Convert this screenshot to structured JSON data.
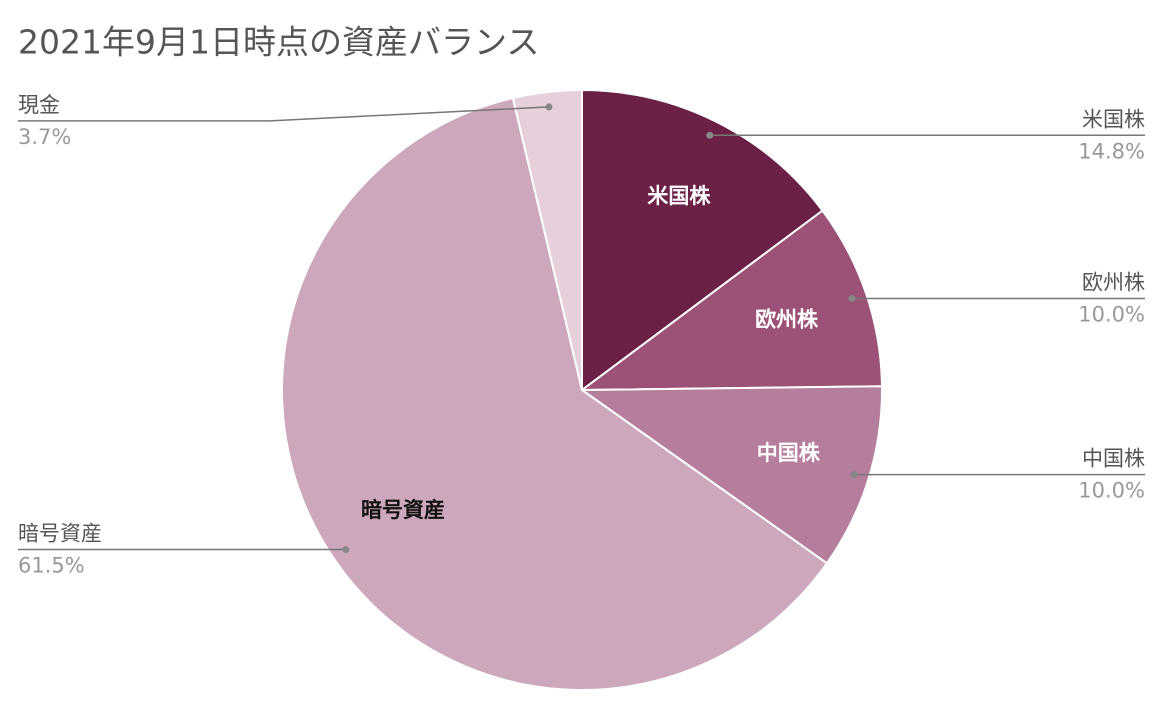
{
  "chart_data": {
    "type": "pie",
    "title": "2021年9月1日時点の資産バランス",
    "categories": [
      "米国株",
      "欧州株",
      "中国株",
      "暗号資産",
      "現金"
    ],
    "values": [
      14.8,
      10.0,
      10.0,
      61.5,
      3.7
    ],
    "value_labels": [
      "14.8%",
      "10.0%",
      "10.0%",
      "61.5%",
      "3.7%"
    ],
    "colors": [
      "#6b2046",
      "#9b5276",
      "#b57e9c",
      "#cda7bc",
      "#e5d0dc"
    ]
  }
}
